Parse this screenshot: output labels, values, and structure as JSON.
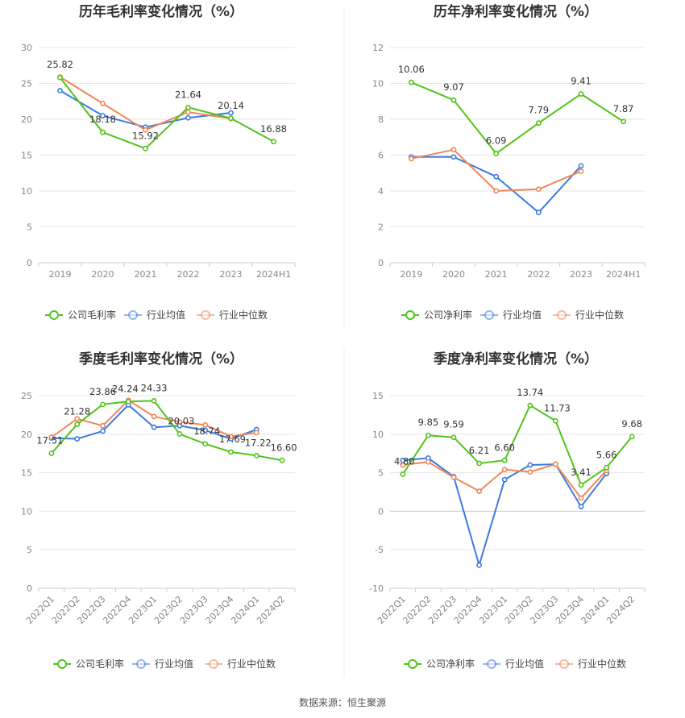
{
  "source": "数据来源：恒生聚源",
  "colors": {
    "company": "#52c41a",
    "avg": "#3d7be0",
    "median": "#f0875a",
    "grid": "#e6e6e6",
    "axis": "#cccccc"
  },
  "chart_data": [
    {
      "type": "line",
      "title": "历年毛利率变化情况（%）",
      "categories": [
        "2019",
        "2020",
        "2021",
        "2022",
        "2023",
        "2024H1"
      ],
      "ylim": [
        0,
        30
      ],
      "yticks": [
        0,
        5,
        10,
        15,
        20,
        25,
        30
      ],
      "series": [
        {
          "name": "公司毛利率",
          "key": "company",
          "values": [
            25.82,
            18.18,
            15.92,
            21.64,
            20.14,
            16.88
          ],
          "labels": [
            "25.82",
            "18.18",
            "15.92",
            "21.64",
            "20.14",
            "16.88"
          ]
        },
        {
          "name": "行业均值",
          "key": "avg",
          "values": [
            24.0,
            20.5,
            18.9,
            20.2,
            20.9,
            null
          ]
        },
        {
          "name": "行业中位数",
          "key": "median",
          "values": [
            25.9,
            22.2,
            18.5,
            21.0,
            20.1,
            null
          ]
        }
      ]
    },
    {
      "type": "line",
      "title": "历年净利率变化情况（%）",
      "categories": [
        "2019",
        "2020",
        "2021",
        "2022",
        "2023",
        "2024H1"
      ],
      "ylim": [
        0,
        12
      ],
      "yticks": [
        0,
        2,
        4,
        6,
        8,
        10,
        12
      ],
      "series": [
        {
          "name": "公司净利率",
          "key": "company",
          "values": [
            10.06,
            9.07,
            6.09,
            7.79,
            9.41,
            7.87
          ],
          "labels": [
            "10.06",
            "9.07",
            "6.09",
            "7.79",
            "9.41",
            "7.87"
          ]
        },
        {
          "name": "行业均值",
          "key": "avg",
          "values": [
            5.9,
            5.9,
            4.8,
            2.8,
            5.4,
            null
          ]
        },
        {
          "name": "行业中位数",
          "key": "median",
          "values": [
            5.8,
            6.3,
            4.0,
            4.1,
            5.1,
            null
          ]
        }
      ]
    },
    {
      "type": "line",
      "title": "季度毛利率变化情况（%）",
      "categories": [
        "2022Q1",
        "2022Q2",
        "2022Q3",
        "2022Q4",
        "2023Q1",
        "2023Q2",
        "2023Q3",
        "2023Q4",
        "2024Q1",
        "2024Q2"
      ],
      "ylim": [
        0,
        25
      ],
      "yticks": [
        0,
        5,
        10,
        15,
        20,
        25
      ],
      "series": [
        {
          "name": "公司毛利率",
          "key": "company",
          "values": [
            17.51,
            21.28,
            23.86,
            24.24,
            24.33,
            20.03,
            18.74,
            17.69,
            17.22,
            16.6
          ],
          "labels": [
            "17.51",
            "21.28",
            "23.86",
            "24.24",
            "24.33",
            "20.03",
            "18.74",
            "17.69",
            "17.22",
            "16.60"
          ]
        },
        {
          "name": "行业均值",
          "key": "avg",
          "values": [
            19.5,
            19.4,
            20.4,
            23.8,
            20.9,
            21.1,
            20.5,
            19.4,
            20.6,
            null
          ]
        },
        {
          "name": "行业中位数",
          "key": "median",
          "values": [
            19.6,
            22.0,
            21.1,
            24.4,
            22.3,
            21.6,
            21.2,
            19.7,
            20.2,
            null
          ]
        }
      ]
    },
    {
      "type": "line",
      "title": "季度净利率变化情况（%）",
      "categories": [
        "2022Q1",
        "2022Q2",
        "2022Q3",
        "2022Q4",
        "2023Q1",
        "2023Q2",
        "2023Q3",
        "2023Q4",
        "2024Q1",
        "2024Q2"
      ],
      "ylim": [
        -10,
        15
      ],
      "yticks": [
        -10,
        -5,
        0,
        5,
        10,
        15
      ],
      "series": [
        {
          "name": "公司净利率",
          "key": "company",
          "values": [
            4.8,
            9.85,
            9.59,
            6.21,
            6.6,
            13.74,
            11.73,
            3.41,
            5.66,
            9.68
          ],
          "labels": [
            "4.80",
            "9.85",
            "9.59",
            "6.21",
            "6.60",
            "13.74",
            "11.73",
            "3.41",
            "5.66",
            "9.68"
          ]
        },
        {
          "name": "行业均值",
          "key": "avg",
          "values": [
            6.6,
            6.9,
            4.5,
            -7.0,
            4.1,
            6.0,
            6.1,
            0.6,
            4.9,
            null
          ]
        },
        {
          "name": "行业中位数",
          "key": "median",
          "values": [
            6.0,
            6.4,
            4.4,
            2.6,
            5.4,
            5.1,
            6.1,
            1.7,
            5.3,
            null
          ]
        }
      ]
    }
  ]
}
